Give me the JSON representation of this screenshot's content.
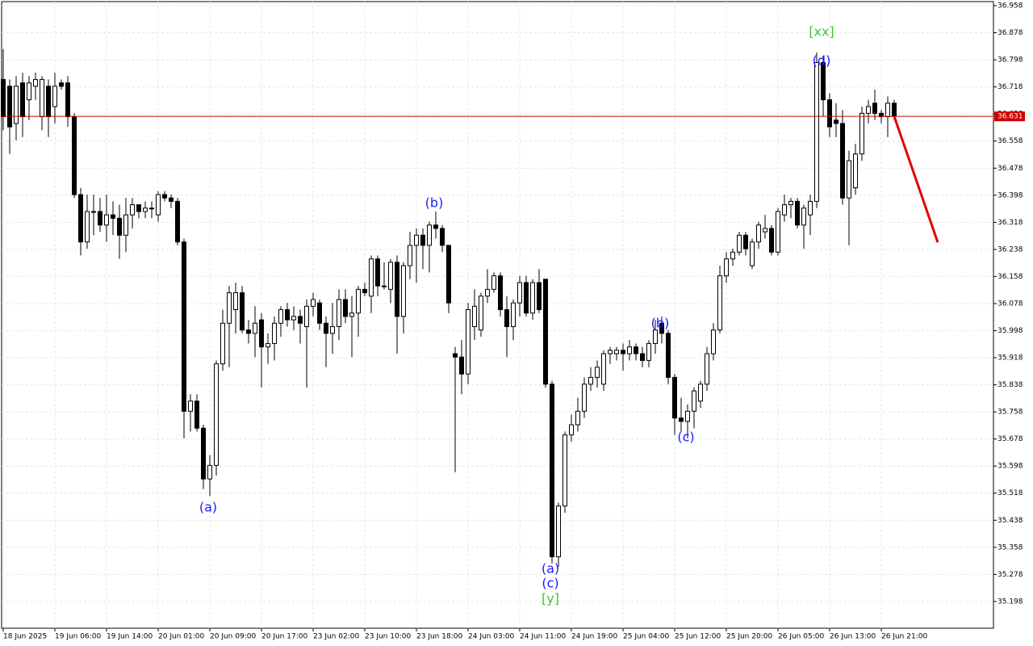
{
  "chart_data": {
    "type": "candlestick",
    "categories": [
      "18 Jun 2025",
      null,
      null,
      null,
      null,
      null,
      null,
      null,
      "19 Jun 06:00",
      null,
      null,
      null,
      null,
      null,
      null,
      null,
      "19 Jun 14:00",
      null,
      null,
      null,
      null,
      null,
      null,
      null,
      "20 Jun 01:00",
      null,
      null,
      null,
      null,
      null,
      null,
      null,
      "20 Jun 09:00",
      null,
      null,
      null,
      null,
      null,
      null,
      null,
      "20 Jun 17:00",
      null,
      null,
      null,
      null,
      null,
      null,
      null,
      "23 Jun 02:00",
      null,
      null,
      null,
      null,
      null,
      null,
      null,
      "23 Jun 10:00",
      null,
      null,
      null,
      null,
      null,
      null,
      null,
      "23 Jun 18:00",
      null,
      null,
      null,
      null,
      null,
      null,
      null,
      "24 Jun 03:00",
      null,
      null,
      null,
      null,
      null,
      null,
      null,
      "24 Jun 11:00",
      null,
      null,
      null,
      null,
      null,
      null,
      null,
      "24 Jun 19:00",
      null,
      null,
      null,
      null,
      null,
      null,
      null,
      "25 Jun 04:00",
      null,
      null,
      null,
      null,
      null,
      null,
      null,
      "25 Jun 12:00",
      null,
      null,
      null,
      null,
      null,
      null,
      null,
      "25 Jun 20:00",
      null,
      null,
      null,
      null,
      null,
      null,
      null,
      "26 Jun 05:00",
      null,
      null,
      null,
      null,
      null,
      null,
      null,
      "26 Jun 13:00",
      null,
      null,
      null,
      null,
      null,
      null,
      null,
      "26 Jun 21:00",
      null,
      null
    ],
    "open": [
      36.74,
      36.72,
      36.61,
      36.73,
      36.68,
      36.72,
      36.63,
      36.72,
      36.66,
      36.73,
      36.73,
      36.63,
      36.4,
      36.26,
      36.35,
      36.35,
      36.31,
      36.34,
      36.33,
      36.28,
      36.34,
      36.37,
      36.35,
      36.36,
      36.34,
      36.4,
      36.39,
      36.38,
      36.26,
      35.76,
      35.79,
      35.71,
      35.56,
      35.6,
      35.9,
      36.02,
      36.06,
      36.11,
      36.0,
      35.99,
      36.03,
      35.95,
      35.96,
      36.02,
      36.06,
      36.03,
      36.04,
      36.01,
      36.07,
      36.08,
      36.02,
      35.99,
      36.01,
      36.09,
      36.04,
      36.05,
      36.12,
      36.1,
      36.21,
      36.13,
      36.12,
      36.2,
      36.04,
      36.19,
      36.25,
      36.28,
      36.25,
      36.31,
      36.3,
      36.25,
      35.93,
      35.92,
      35.87,
      36.01,
      36.0,
      36.1,
      36.12,
      36.16,
      36.06,
      36.01,
      36.08,
      36.14,
      36.05,
      36.14,
      36.15,
      35.84,
      35.33,
      35.48,
      35.69,
      35.72,
      35.76,
      35.84,
      35.86,
      35.84,
      35.93,
      35.93,
      35.94,
      35.93,
      35.95,
      35.93,
      35.91,
      35.96,
      36.02,
      35.99,
      35.86,
      35.74,
      35.73,
      35.76,
      35.79,
      35.84,
      35.93,
      36.0,
      36.16,
      36.21,
      36.23,
      36.28,
      36.19,
      36.26,
      36.29,
      36.3,
      36.23,
      36.34,
      36.37,
      36.38,
      36.31,
      36.34,
      36.38,
      36.79,
      36.68,
      36.62,
      36.61,
      36.39,
      36.42,
      36.52,
      36.64,
      36.67,
      36.64,
      36.63,
      36.67
    ],
    "high": [
      36.83,
      36.74,
      36.75,
      36.76,
      36.75,
      36.76,
      36.75,
      36.74,
      36.76,
      36.74,
      36.75,
      36.64,
      36.42,
      36.4,
      36.4,
      36.39,
      36.4,
      36.38,
      36.37,
      36.39,
      36.39,
      36.37,
      36.38,
      36.38,
      36.41,
      36.41,
      36.4,
      36.39,
      36.27,
      35.81,
      35.81,
      35.72,
      35.63,
      35.91,
      36.06,
      36.13,
      36.14,
      36.13,
      36.03,
      36.07,
      36.05,
      35.99,
      36.04,
      36.07,
      36.08,
      36.07,
      36.06,
      36.09,
      36.11,
      36.09,
      36.04,
      36.08,
      36.12,
      36.12,
      36.1,
      36.13,
      36.14,
      36.22,
      36.22,
      36.2,
      36.21,
      36.22,
      36.2,
      36.29,
      36.3,
      36.3,
      36.32,
      36.35,
      36.31,
      36.25,
      35.95,
      35.97,
      36.08,
      36.12,
      36.11,
      36.18,
      36.17,
      36.17,
      36.1,
      36.09,
      36.16,
      36.16,
      36.15,
      36.18,
      36.15,
      35.85,
      35.49,
      35.7,
      35.75,
      35.8,
      35.86,
      35.89,
      35.91,
      35.94,
      35.95,
      35.95,
      35.96,
      35.97,
      35.96,
      35.95,
      35.97,
      36.03,
      36.04,
      36.0,
      35.87,
      35.8,
      35.78,
      35.83,
      35.85,
      35.95,
      36.02,
      36.19,
      36.23,
      36.24,
      36.29,
      36.29,
      36.27,
      36.32,
      36.34,
      36.31,
      36.36,
      36.4,
      36.39,
      36.39,
      36.37,
      36.4,
      36.82,
      36.81,
      36.7,
      36.67,
      36.65,
      36.53,
      36.55,
      36.66,
      36.68,
      36.71,
      36.65,
      36.69,
      36.68
    ],
    "low": [
      36.59,
      36.52,
      36.56,
      36.57,
      36.62,
      36.68,
      36.59,
      36.57,
      36.61,
      36.71,
      36.6,
      36.39,
      36.22,
      36.24,
      36.28,
      36.29,
      36.26,
      36.28,
      36.21,
      36.23,
      36.3,
      36.33,
      36.33,
      36.33,
      36.32,
      36.38,
      36.36,
      36.25,
      35.68,
      35.7,
      35.7,
      35.53,
      35.51,
      35.57,
      35.88,
      35.89,
      35.99,
      35.99,
      35.96,
      35.92,
      35.83,
      35.9,
      35.91,
      35.98,
      36.01,
      36.0,
      35.96,
      35.83,
      36.04,
      36.0,
      35.89,
      35.93,
      35.97,
      36.02,
      35.92,
      35.98,
      36.1,
      36.05,
      36.1,
      36.12,
      36.08,
      35.93,
      35.99,
      36.15,
      36.14,
      36.18,
      36.17,
      36.27,
      36.23,
      36.05,
      35.58,
      35.81,
      35.84,
      35.97,
      35.98,
      36.08,
      36.11,
      36.04,
      35.92,
      35.97,
      36.04,
      36.04,
      36.03,
      36.05,
      35.83,
      35.31,
      35.3,
      35.46,
      35.67,
      35.7,
      35.74,
      35.82,
      35.83,
      35.82,
      35.9,
      35.91,
      35.88,
      35.91,
      35.91,
      35.89,
      35.89,
      35.93,
      35.96,
      35.84,
      35.69,
      35.7,
      35.68,
      35.71,
      35.77,
      35.82,
      35.91,
      35.99,
      36.14,
      36.19,
      36.22,
      36.22,
      36.18,
      36.24,
      36.27,
      36.22,
      36.22,
      36.32,
      36.33,
      36.3,
      36.24,
      36.28,
      36.36,
      36.63,
      36.57,
      36.57,
      36.37,
      36.25,
      36.4,
      36.5,
      36.61,
      36.62,
      36.61,
      36.57,
      36.62
    ],
    "close": [
      36.63,
      36.6,
      36.72,
      36.63,
      36.73,
      36.74,
      36.74,
      36.63,
      36.72,
      36.72,
      36.63,
      36.4,
      36.26,
      36.35,
      36.35,
      36.31,
      36.34,
      36.33,
      36.28,
      36.34,
      36.37,
      36.35,
      36.36,
      36.36,
      36.4,
      36.39,
      36.38,
      36.26,
      35.76,
      35.79,
      35.71,
      35.56,
      35.6,
      35.9,
      36.02,
      36.11,
      36.11,
      36.0,
      35.99,
      36.02,
      35.95,
      35.96,
      36.02,
      36.06,
      36.03,
      36.04,
      36.02,
      36.07,
      36.09,
      36.02,
      35.99,
      36.01,
      36.09,
      36.04,
      36.05,
      36.12,
      36.11,
      36.21,
      36.13,
      36.13,
      36.2,
      36.04,
      36.19,
      36.25,
      36.28,
      36.25,
      36.31,
      36.3,
      36.25,
      36.08,
      35.92,
      35.87,
      36.06,
      36.07,
      36.1,
      36.12,
      36.16,
      36.06,
      36.01,
      36.08,
      36.14,
      36.05,
      36.14,
      36.06,
      35.84,
      35.33,
      35.48,
      35.69,
      35.72,
      35.76,
      35.84,
      35.86,
      35.89,
      35.93,
      35.94,
      35.94,
      35.93,
      35.95,
      35.93,
      35.91,
      35.96,
      36.0,
      35.99,
      35.86,
      35.74,
      35.73,
      35.76,
      35.82,
      35.84,
      35.93,
      36.0,
      36.16,
      36.21,
      36.23,
      36.28,
      36.24,
      36.26,
      36.31,
      36.3,
      36.23,
      36.35,
      36.37,
      36.38,
      36.31,
      36.36,
      36.38,
      36.79,
      36.68,
      36.6,
      36.61,
      36.39,
      36.5,
      36.52,
      36.64,
      36.66,
      36.64,
      36.63,
      36.67,
      36.631
    ],
    "ylim": [
      35.119,
      36.97
    ],
    "yticks": [
      36.958,
      36.878,
      36.798,
      36.718,
      36.638,
      36.558,
      36.478,
      36.398,
      36.318,
      36.238,
      36.158,
      36.078,
      35.998,
      35.918,
      35.838,
      35.758,
      35.678,
      35.598,
      35.518,
      35.438,
      35.358,
      35.278,
      35.198
    ],
    "grid": true,
    "current_price": 36.631,
    "current_price_color": "#d00000",
    "forecast": {
      "color": "#e00000",
      "values": [
        36.631,
        36.259
      ]
    },
    "annotations": [
      {
        "text": "(a)",
        "color": "#1a1aff"
      },
      {
        "text": "(b)",
        "color": "#1a1aff"
      },
      {
        "text": "(a)",
        "color": "#1a1aff"
      },
      {
        "text": "(c)",
        "color": "#1a1aff"
      },
      {
        "text": "[y]",
        "color": "#3cc43c"
      },
      {
        "text": "(b)",
        "color": "#1a1aff"
      },
      {
        "text": "(c)",
        "color": "#1a1aff"
      },
      {
        "text": "(d)",
        "color": "#1a1aff"
      },
      {
        "text": "[xx]",
        "color": "#3cc43c"
      }
    ]
  }
}
